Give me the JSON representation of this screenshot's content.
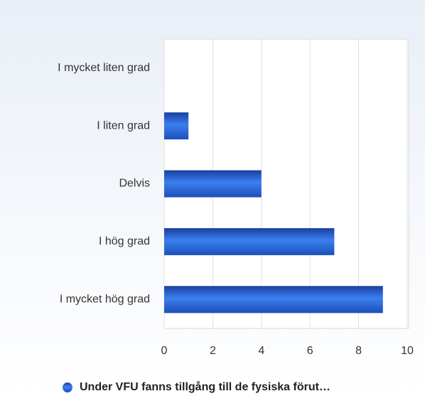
{
  "chart_data": {
    "type": "bar",
    "orientation": "horizontal",
    "categories": [
      "I mycket liten grad",
      "I liten grad",
      "Delvis",
      "I hög grad",
      "I mycket hög grad"
    ],
    "series": [
      {
        "name": "Under VFU fanns tillgång till de fysiska förut…",
        "color": "#2a62d6",
        "values": [
          0,
          1,
          4,
          7,
          9
        ]
      }
    ],
    "xlim": [
      0,
      10
    ],
    "xticks": [
      0,
      2,
      4,
      6,
      8,
      10
    ],
    "grid": true,
    "legend": "bottom"
  }
}
